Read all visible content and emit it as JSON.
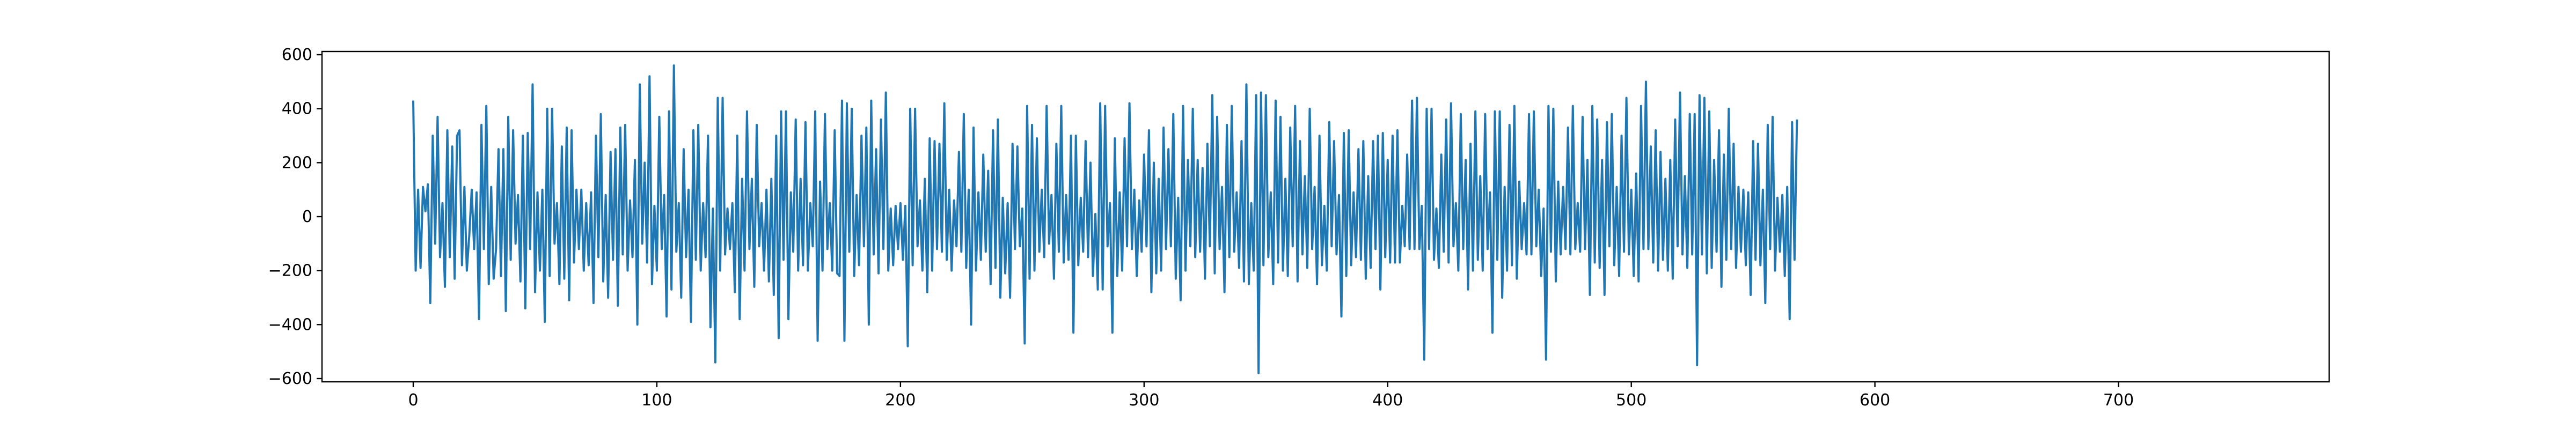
{
  "chart_data": {
    "type": "line",
    "title": "",
    "xlabel": "",
    "ylabel": "",
    "xlim": [
      -37.45,
      786.45
    ],
    "ylim": [
      -612,
      612
    ],
    "grid": false,
    "legend": "none",
    "x_ticks": [
      0,
      100,
      200,
      300,
      400,
      500,
      600,
      700
    ],
    "y_ticks": [
      -600,
      -400,
      -200,
      0,
      200,
      400,
      600
    ],
    "x_tick_labels": [
      "0",
      "100",
      "200",
      "300",
      "400",
      "500",
      "600",
      "700"
    ],
    "y_tick_labels": [
      "−600",
      "−400",
      "−200",
      "0",
      "200",
      "400",
      "600"
    ],
    "series": [
      {
        "color": "#1f77b4",
        "x_start": 0,
        "x_step": 1,
        "values": [
          430,
          -200,
          100,
          -190,
          110,
          20,
          120,
          -320,
          300,
          -100,
          370,
          -150,
          50,
          -260,
          320,
          -150,
          260,
          -230,
          300,
          320,
          -180,
          110,
          -200,
          -70,
          100,
          -120,
          90,
          -380,
          340,
          -120,
          410,
          -250,
          110,
          -230,
          -120,
          250,
          -220,
          250,
          -350,
          370,
          -160,
          320,
          -100,
          80,
          -240,
          300,
          -340,
          310,
          -120,
          490,
          -280,
          90,
          -200,
          100,
          -390,
          400,
          -220,
          400,
          -100,
          50,
          -250,
          260,
          -230,
          330,
          -310,
          320,
          -170,
          100,
          -120,
          100,
          -200,
          50,
          -180,
          90,
          -320,
          300,
          -150,
          380,
          -240,
          80,
          -300,
          240,
          -160,
          250,
          -330,
          330,
          -140,
          340,
          -200,
          60,
          -150,
          210,
          -400,
          490,
          -100,
          200,
          -170,
          520,
          -250,
          40,
          -200,
          370,
          -120,
          80,
          -370,
          390,
          -270,
          560,
          -130,
          50,
          -300,
          250,
          -150,
          100,
          -390,
          320,
          -160,
          340,
          -200,
          50,
          -150,
          300,
          -410,
          30,
          -540,
          440,
          -200,
          440,
          -140,
          30,
          -120,
          50,
          -280,
          300,
          -380,
          140,
          -200,
          390,
          -120,
          140,
          -260,
          340,
          -110,
          50,
          -200,
          100,
          -240,
          140,
          -290,
          300,
          -450,
          390,
          -160,
          390,
          -380,
          90,
          -130,
          360,
          -200,
          140,
          -180,
          350,
          -200,
          50,
          -110,
          390,
          -460,
          130,
          -200,
          380,
          -120,
          50,
          -200,
          320,
          -210,
          -220,
          430,
          -460,
          420,
          -130,
          400,
          -220,
          80,
          -180,
          300,
          -110,
          330,
          -400,
          430,
          -140,
          250,
          -210,
          360,
          -120,
          460,
          -200,
          30,
          -180,
          40,
          -120,
          50,
          -160,
          40,
          -480,
          400,
          -180,
          400,
          -110,
          60,
          -200,
          140,
          -280,
          290,
          -200,
          280,
          -120,
          270,
          -130,
          420,
          -160,
          100,
          -200,
          60,
          -110,
          240,
          -130,
          380,
          -190,
          100,
          -400,
          330,
          -200,
          90,
          -160,
          230,
          -130,
          170,
          -250,
          320,
          -190,
          360,
          -300,
          70,
          -210,
          50,
          -300,
          270,
          -120,
          260,
          -110,
          30,
          -470,
          410,
          -230,
          340,
          -200,
          290,
          -130,
          100,
          -150,
          410,
          -100,
          80,
          -230,
          270,
          -130,
          410,
          -170,
          80,
          -160,
          300,
          -430,
          300,
          -180,
          70,
          -130,
          280,
          -150,
          200,
          -220,
          10,
          -270,
          420,
          -270,
          410,
          -110,
          50,
          -430,
          290,
          -220,
          90,
          -200,
          290,
          -110,
          420,
          -120,
          100,
          -220,
          60,
          -130,
          230,
          -110,
          320,
          -280,
          200,
          -210,
          140,
          -200,
          330,
          -120,
          250,
          -110,
          380,
          -230,
          70,
          -310,
          410,
          -200,
          210,
          -110,
          400,
          -150,
          210,
          -130,
          180,
          -230,
          270,
          -110,
          450,
          -210,
          370,
          -120,
          110,
          -280,
          340,
          -150,
          410,
          -130,
          90,
          -190,
          280,
          -240,
          490,
          -250,
          50,
          -200,
          450,
          -580,
          460,
          -180,
          450,
          -150,
          90,
          -250,
          430,
          -170,
          370,
          -200,
          140,
          -220,
          330,
          -110,
          410,
          -240,
          280,
          -140,
          150,
          -190,
          400,
          -120,
          110,
          -250,
          300,
          -180,
          40,
          -200,
          350,
          -110,
          280,
          -140,
          80,
          -370,
          310,
          -220,
          320,
          -180,
          90,
          -150,
          250,
          -160,
          280,
          -230,
          150,
          -190,
          280,
          -120,
          300,
          -270,
          310,
          -150,
          210,
          -170,
          300,
          -170,
          320,
          -170,
          40,
          -110,
          230,
          -120,
          430,
          -120,
          440,
          -120,
          40,
          -530,
          400,
          -120,
          400,
          -160,
          30,
          -190,
          230,
          -130,
          360,
          -170,
          420,
          -110,
          50,
          -200,
          380,
          -120,
          210,
          -270,
          270,
          -200,
          390,
          -160,
          150,
          -200,
          380,
          -120,
          90,
          -430,
          390,
          -160,
          390,
          -300,
          110,
          -200,
          340,
          -180,
          410,
          -230,
          130,
          -120,
          50,
          -140,
          380,
          -140,
          390,
          -110,
          100,
          -220,
          30,
          -530,
          410,
          -130,
          400,
          -240,
          130,
          -140,
          110,
          -120,
          330,
          -140,
          410,
          -120,
          50,
          -130,
          370,
          -120,
          210,
          -290,
          410,
          -170,
          360,
          -190,
          210,
          -290,
          350,
          -110,
          380,
          -180,
          110,
          -220,
          300,
          -130,
          440,
          -140,
          100,
          -220,
          160,
          -240,
          410,
          -120,
          500,
          -120,
          260,
          -170,
          320,
          -200,
          240,
          -160,
          140,
          -200,
          210,
          -230,
          360,
          -110,
          460,
          -140,
          150,
          -190,
          380,
          -140,
          380,
          -550,
          450,
          -140,
          440,
          -210,
          390,
          -190,
          210,
          -130,
          320,
          -260,
          230,
          -160,
          400,
          -120,
          270,
          -190,
          110,
          -130,
          100,
          -180,
          90,
          -290,
          280,
          -160,
          270,
          -180,
          100,
          -320,
          340,
          -120,
          370,
          -200,
          70,
          -130,
          80,
          -220,
          110,
          -380,
          350,
          -160,
          360
        ]
      }
    ]
  }
}
